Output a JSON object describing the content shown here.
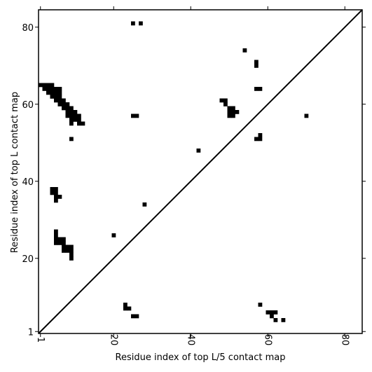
{
  "chart_data": {
    "type": "heatmap",
    "title": "",
    "xlabel": "Residue index of top L/5 contact map",
    "ylabel": "Residue index of top L contact map",
    "xlim": [
      1,
      85
    ],
    "ylim": [
      1,
      85
    ],
    "x_ticks": [
      1,
      20,
      40,
      60,
      80
    ],
    "y_ticks": [
      1,
      20,
      40,
      60,
      80
    ],
    "diagonal": true,
    "cell_color": "#000000",
    "upper_triangle_contacts": [
      [
        1,
        65
      ],
      [
        2,
        65
      ],
      [
        3,
        65
      ],
      [
        4,
        65
      ],
      [
        2,
        64
      ],
      [
        3,
        64
      ],
      [
        4,
        64
      ],
      [
        5,
        64
      ],
      [
        6,
        64
      ],
      [
        3,
        63
      ],
      [
        4,
        63
      ],
      [
        5,
        63
      ],
      [
        6,
        63
      ],
      [
        4,
        62
      ],
      [
        5,
        62
      ],
      [
        6,
        62
      ],
      [
        5,
        61
      ],
      [
        6,
        61
      ],
      [
        7,
        61
      ],
      [
        6,
        60
      ],
      [
        7,
        60
      ],
      [
        8,
        60
      ],
      [
        7,
        59
      ],
      [
        8,
        59
      ],
      [
        9,
        59
      ],
      [
        8,
        58
      ],
      [
        9,
        58
      ],
      [
        10,
        58
      ],
      [
        8,
        57
      ],
      [
        9,
        57
      ],
      [
        10,
        57
      ],
      [
        11,
        57
      ],
      [
        9,
        56
      ],
      [
        10,
        56
      ],
      [
        11,
        56
      ],
      [
        9,
        55
      ],
      [
        11,
        55
      ],
      [
        12,
        55
      ],
      [
        9,
        51
      ],
      [
        25,
        81
      ],
      [
        27,
        81
      ],
      [
        54,
        74
      ],
      [
        57,
        71
      ],
      [
        57,
        70
      ],
      [
        57,
        64
      ],
      [
        58,
        64
      ],
      [
        48,
        61
      ],
      [
        49,
        61
      ],
      [
        49,
        60
      ],
      [
        50,
        59
      ],
      [
        51,
        59
      ],
      [
        50,
        58
      ],
      [
        51,
        58
      ],
      [
        52,
        58
      ],
      [
        50,
        57
      ],
      [
        51,
        57
      ],
      [
        25,
        57
      ],
      [
        26,
        57
      ],
      [
        70,
        57
      ],
      [
        58,
        52
      ],
      [
        57,
        51
      ],
      [
        58,
        51
      ],
      [
        42,
        48
      ],
      [
        4,
        38
      ],
      [
        5,
        38
      ],
      [
        4,
        37
      ],
      [
        5,
        37
      ],
      [
        5,
        36
      ],
      [
        6,
        36
      ],
      [
        5,
        35
      ],
      [
        28,
        34
      ],
      [
        5,
        27
      ],
      [
        5,
        26
      ],
      [
        20,
        26
      ],
      [
        5,
        25
      ],
      [
        6,
        25
      ],
      [
        7,
        25
      ],
      [
        5,
        24
      ],
      [
        6,
        24
      ],
      [
        7,
        24
      ],
      [
        7,
        23
      ],
      [
        8,
        23
      ],
      [
        9,
        23
      ],
      [
        7,
        22
      ],
      [
        8,
        22
      ],
      [
        9,
        22
      ],
      [
        9,
        21
      ],
      [
        9,
        20
      ]
    ],
    "lower_triangle_contacts": [
      [
        23,
        8
      ],
      [
        23,
        7
      ],
      [
        24,
        7
      ],
      [
        58,
        8
      ],
      [
        60,
        6
      ],
      [
        61,
        6
      ],
      [
        62,
        6
      ],
      [
        61,
        5
      ],
      [
        62,
        4
      ],
      [
        64,
        4
      ],
      [
        25,
        5
      ],
      [
        26,
        5
      ]
    ]
  }
}
